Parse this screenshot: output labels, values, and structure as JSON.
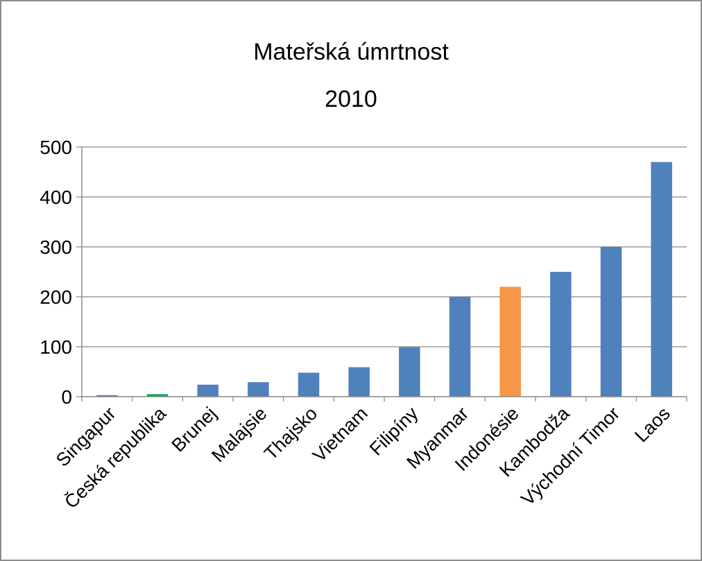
{
  "chart_data": {
    "type": "bar",
    "title": "Mateřská úmrtnost",
    "subtitle": "2010",
    "categories": [
      "Singapur",
      "Česká republika",
      "Brunej",
      "Malajsie",
      "Thajsko",
      "Vietnam",
      "Filipíny",
      "Myanmar",
      "Indonésie",
      "Kambodža",
      "Východní Timor",
      "Laos"
    ],
    "values": [
      3,
      5,
      24,
      29,
      48,
      59,
      99,
      200,
      220,
      250,
      300,
      470
    ],
    "colors": [
      "#4f81bd",
      "#00b050",
      "#4f81bd",
      "#4f81bd",
      "#4f81bd",
      "#4f81bd",
      "#4f81bd",
      "#4f81bd",
      "#f79646",
      "#4f81bd",
      "#4f81bd",
      "#4f81bd"
    ],
    "ylim": [
      0,
      500
    ],
    "yticks": [
      0,
      100,
      200,
      300,
      400,
      500
    ],
    "xlabel": "",
    "ylabel": "",
    "grid": true,
    "legend": "none"
  }
}
